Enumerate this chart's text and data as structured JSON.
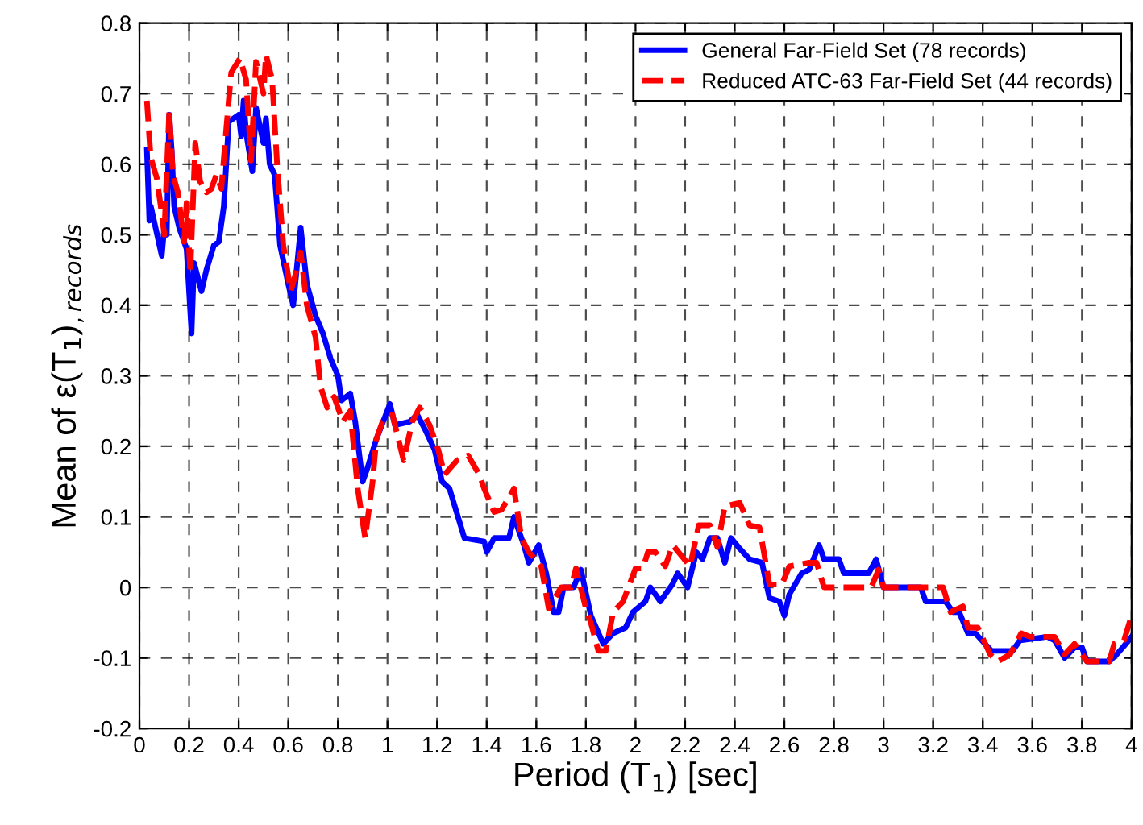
{
  "chart_data": {
    "type": "line",
    "xlabel": "Period (T$_{1}$) [sec]",
    "ylabel": "Mean of ε(T$_{1}$)$_{,records}$",
    "xlim": [
      0,
      4
    ],
    "xticks": [
      0,
      0.2,
      0.4,
      0.6,
      0.8,
      1,
      1.2,
      1.4,
      1.6,
      1.8,
      2,
      2.2,
      2.4,
      2.6,
      2.8,
      3,
      3.2,
      3.4,
      3.6,
      3.8,
      4
    ],
    "ylim": [
      -0.2,
      0.8
    ],
    "yticks": [
      -0.2,
      -0.1,
      0,
      0.1,
      0.2,
      0.3,
      0.4,
      0.5,
      0.6,
      0.7,
      0.8
    ],
    "grid": true,
    "legend": "top right",
    "marker": "none",
    "series": [
      {
        "name": "General Far-Field Set (78 records)",
        "color": "#0000ff",
        "line_style": "solid",
        "x": [
          0.03,
          0.04,
          0.046,
          0.09,
          0.1,
          0.11,
          0.12,
          0.13,
          0.14,
          0.16,
          0.19,
          0.21,
          0.22,
          0.25,
          0.27,
          0.3,
          0.32,
          0.34,
          0.36,
          0.4,
          0.41,
          0.42,
          0.43,
          0.455,
          0.47,
          0.5,
          0.51,
          0.525,
          0.545,
          0.567,
          0.6,
          0.62,
          0.65,
          0.675,
          0.71,
          0.74,
          0.77,
          0.8,
          0.815,
          0.85,
          0.87,
          0.9,
          0.92,
          0.955,
          1.01,
          1.03,
          1.09,
          1.12,
          1.15,
          1.19,
          1.22,
          1.25,
          1.31,
          1.39,
          1.4,
          1.43,
          1.49,
          1.51,
          1.55,
          1.57,
          1.61,
          1.64,
          1.67,
          1.69,
          1.71,
          1.75,
          1.78,
          1.82,
          1.87,
          1.91,
          1.96,
          1.99,
          2.04,
          2.06,
          2.1,
          2.15,
          2.17,
          2.21,
          2.245,
          2.27,
          2.3,
          2.33,
          2.36,
          2.385,
          2.42,
          2.46,
          2.51,
          2.54,
          2.58,
          2.6,
          2.62,
          2.67,
          2.7,
          2.74,
          2.76,
          2.82,
          2.84,
          2.94,
          2.97,
          3.0,
          3.15,
          3.17,
          3.25,
          3.28,
          3.305,
          3.34,
          3.37,
          3.435,
          3.52,
          3.55,
          3.66,
          3.69,
          3.73,
          3.77,
          3.8,
          3.82,
          3.91,
          3.94,
          3.965,
          4.0
        ],
        "values": [
          0.62,
          0.52,
          0.54,
          0.47,
          0.51,
          0.5,
          0.67,
          0.62,
          0.54,
          0.51,
          0.48,
          0.36,
          0.46,
          0.42,
          0.45,
          0.485,
          0.49,
          0.54,
          0.66,
          0.67,
          0.64,
          0.69,
          0.645,
          0.59,
          0.68,
          0.63,
          0.665,
          0.6,
          0.585,
          0.485,
          0.43,
          0.4,
          0.51,
          0.43,
          0.385,
          0.36,
          0.325,
          0.3,
          0.265,
          0.275,
          0.235,
          0.15,
          0.17,
          0.21,
          0.26,
          0.23,
          0.235,
          0.245,
          0.225,
          0.195,
          0.15,
          0.14,
          0.07,
          0.065,
          0.05,
          0.07,
          0.07,
          0.1,
          0.06,
          0.035,
          0.06,
          0.02,
          -0.035,
          -0.035,
          0,
          0,
          0.025,
          -0.04,
          -0.08,
          -0.065,
          -0.057,
          -0.035,
          -0.02,
          0,
          -0.02,
          0.005,
          0.02,
          0,
          0.05,
          0.04,
          0.07,
          0.07,
          0.035,
          0.07,
          0.055,
          0.04,
          0.035,
          -0.015,
          -0.02,
          -0.04,
          -0.01,
          0.02,
          0.025,
          0.06,
          0.04,
          0.04,
          0.02,
          0.02,
          0.04,
          0,
          0,
          -0.02,
          -0.02,
          -0.035,
          -0.035,
          -0.065,
          -0.065,
          -0.09,
          -0.09,
          -0.075,
          -0.07,
          -0.075,
          -0.1,
          -0.085,
          -0.085,
          -0.105,
          -0.105,
          -0.095,
          -0.085,
          -0.07
        ]
      },
      {
        "name": "Reduced ATC-63 Far-Field Set (44 records)",
        "color": "#ff0000",
        "line_style": "dashed",
        "x": [
          0.03,
          0.045,
          0.07,
          0.09,
          0.1,
          0.12,
          0.135,
          0.155,
          0.18,
          0.19,
          0.205,
          0.225,
          0.245,
          0.27,
          0.29,
          0.31,
          0.33,
          0.35,
          0.37,
          0.405,
          0.43,
          0.45,
          0.47,
          0.5,
          0.51,
          0.535,
          0.555,
          0.58,
          0.61,
          0.63,
          0.65,
          0.675,
          0.71,
          0.73,
          0.757,
          0.785,
          0.82,
          0.85,
          0.88,
          0.91,
          0.94,
          0.955,
          0.98,
          1.02,
          1.065,
          1.1,
          1.13,
          1.17,
          1.205,
          1.23,
          1.28,
          1.325,
          1.37,
          1.39,
          1.43,
          1.46,
          1.51,
          1.54,
          1.57,
          1.62,
          1.65,
          1.7,
          1.74,
          1.76,
          1.8,
          1.82,
          1.85,
          1.88,
          1.91,
          1.95,
          2.0,
          2.03,
          2.05,
          2.08,
          2.12,
          2.15,
          2.22,
          2.255,
          2.3,
          2.33,
          2.36,
          2.42,
          2.46,
          2.5,
          2.54,
          2.59,
          2.62,
          2.7,
          2.73,
          2.76,
          2.95,
          2.98,
          3.0,
          3.24,
          3.27,
          3.32,
          3.34,
          3.38,
          3.43,
          3.46,
          3.51,
          3.555,
          3.59,
          3.69,
          3.73,
          3.77,
          3.82,
          3.91,
          3.93,
          3.97,
          4.0
        ],
        "values": [
          0.69,
          0.61,
          0.58,
          0.53,
          0.5,
          0.675,
          0.585,
          0.56,
          0.49,
          0.545,
          0.445,
          0.63,
          0.575,
          0.56,
          0.565,
          0.585,
          0.565,
          0.65,
          0.73,
          0.75,
          0.72,
          0.605,
          0.745,
          0.7,
          0.755,
          0.72,
          0.6,
          0.485,
          0.42,
          0.445,
          0.475,
          0.4,
          0.355,
          0.285,
          0.255,
          0.27,
          0.235,
          0.25,
          0.14,
          0.07,
          0.15,
          0.21,
          0.235,
          0.245,
          0.18,
          0.235,
          0.255,
          0.23,
          0.195,
          0.16,
          0.18,
          0.187,
          0.16,
          0.14,
          0.107,
          0.11,
          0.14,
          0.07,
          0.05,
          0.03,
          -0.03,
          0,
          0,
          0.027,
          -0.03,
          -0.05,
          -0.09,
          -0.09,
          -0.035,
          -0.02,
          0.027,
          0.027,
          0.05,
          0.05,
          0.03,
          0.06,
          0.03,
          0.088,
          0.088,
          0.057,
          0.115,
          0.12,
          0.088,
          0.085,
          0.004,
          0.004,
          0.03,
          0.035,
          0.035,
          0,
          0,
          0.025,
          0,
          0,
          -0.035,
          -0.027,
          -0.057,
          -0.057,
          -0.095,
          -0.105,
          -0.095,
          -0.065,
          -0.07,
          -0.07,
          -0.095,
          -0.08,
          -0.105,
          -0.105,
          -0.08,
          -0.075,
          -0.04
        ]
      }
    ]
  }
}
